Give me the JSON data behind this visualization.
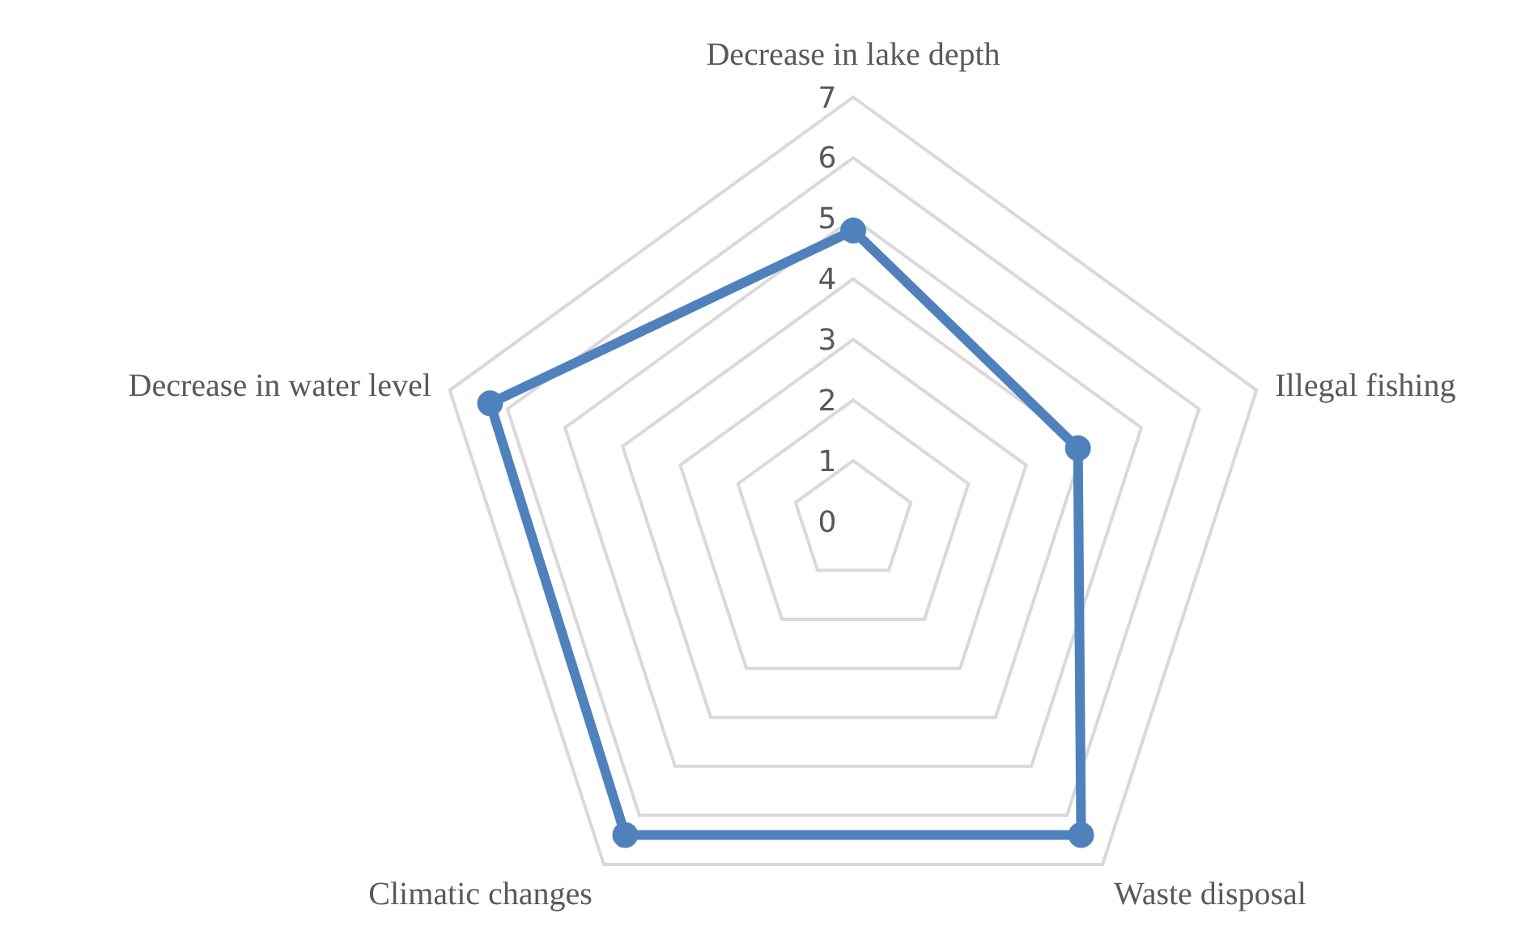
{
  "chart_data": {
    "type": "radar",
    "categories": [
      "Decrease in lake depth",
      "Illegal fishing",
      "Waste disposal",
      "Climatic changes",
      "Decrease in water level"
    ],
    "series": [
      {
        "color": "#4f81bd",
        "values": [
          4.8,
          3.9,
          6.4,
          6.4,
          6.3
        ]
      }
    ],
    "ylim": [
      0,
      7
    ],
    "yticks": [
      0,
      1,
      2,
      3,
      4,
      5,
      6,
      7
    ],
    "grid": true,
    "marker": "circle",
    "line_style": "solid"
  }
}
